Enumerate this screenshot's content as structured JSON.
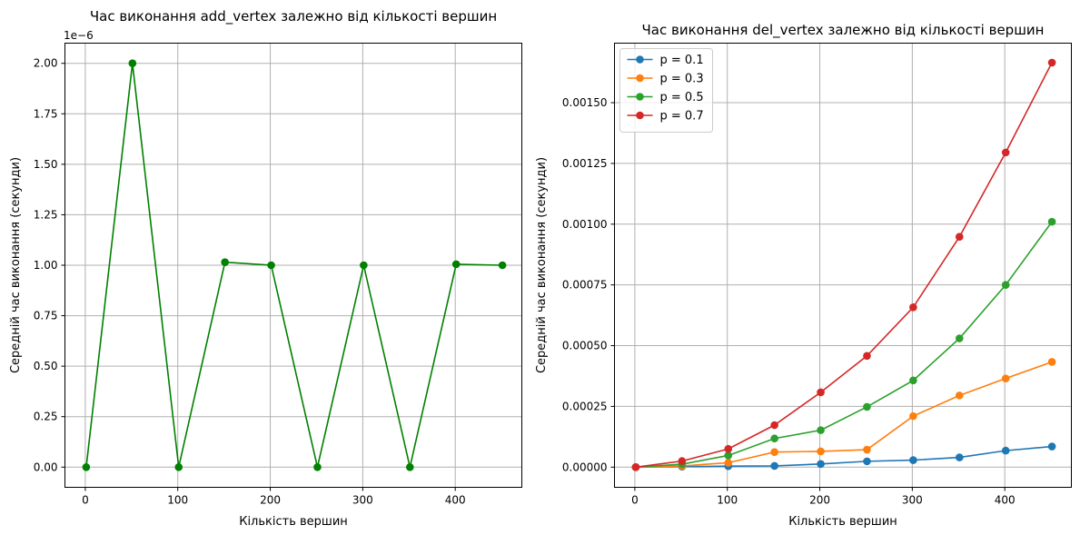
{
  "chart_data": [
    {
      "type": "line",
      "title": "Час виконання add_vertex залежно від кількості вершин",
      "xlabel": "Кількість вершин",
      "ylabel": "Середній час виконання (секунди)",
      "offset_label": "1e−6",
      "xlim": [
        -22,
        472
      ],
      "ylim": [
        -1e-07,
        2.1e-06
      ],
      "xticks": [
        0,
        100,
        200,
        300,
        400
      ],
      "yticks": [
        0,
        2.5e-07,
        5e-07,
        7.5e-07,
        1e-06,
        1.25e-06,
        1.5e-06,
        1.75e-06,
        2e-06
      ],
      "ytick_labels": [
        "0.00",
        "0.25",
        "0.50",
        "0.75",
        "1.00",
        "1.25",
        "1.50",
        "1.75",
        "2.00"
      ],
      "grid": true,
      "series": [
        {
          "color": "#008000",
          "x": [
            1,
            51,
            101,
            151,
            201,
            251,
            301,
            351,
            401,
            451
          ],
          "y": [
            0,
            2e-06,
            0,
            1.015e-06,
            1e-06,
            0,
            1e-06,
            0,
            1.005e-06,
            1e-06
          ]
        }
      ]
    },
    {
      "type": "line",
      "title": "Час виконання del_vertex залежно від кількості вершин",
      "xlabel": "Кількість вершин",
      "ylabel": "Середній час виконання (секунди)",
      "xlim": [
        -22,
        472
      ],
      "ylim": [
        -8.3e-05,
        0.001745
      ],
      "xticks": [
        0,
        100,
        200,
        300,
        400
      ],
      "yticks": [
        0,
        0.00025,
        0.0005,
        0.00075,
        0.001,
        0.00125,
        0.0015
      ],
      "ytick_labels": [
        "0.00000",
        "0.00025",
        "0.00050",
        "0.00075",
        "0.00100",
        "0.00125",
        "0.00150"
      ],
      "grid": true,
      "legend_position": "upper-left",
      "series": [
        {
          "name": "p = 0.1",
          "color": "#1f77b4",
          "x": [
            1,
            51,
            101,
            151,
            201,
            251,
            301,
            351,
            401,
            451
          ],
          "y": [
            0.0,
            2e-06,
            4e-06,
            5e-06,
            1.3e-05,
            2.4e-05,
            2.9e-05,
            4e-05,
            6.8e-05,
            8.5e-05
          ]
        },
        {
          "name": "p = 0.3",
          "color": "#ff7f0e",
          "x": [
            1,
            51,
            101,
            151,
            201,
            251,
            301,
            351,
            401,
            451
          ],
          "y": [
            0.0,
            5e-06,
            1.8e-05,
            6.2e-05,
            6.5e-05,
            7.2e-05,
            0.00021,
            0.000295,
            0.000365,
            0.000433
          ]
        },
        {
          "name": "p = 0.5",
          "color": "#2ca02c",
          "x": [
            1,
            51,
            101,
            151,
            201,
            251,
            301,
            351,
            401,
            451
          ],
          "y": [
            0.0,
            1.2e-05,
            4.8e-05,
            0.000118,
            0.000152,
            0.000248,
            0.000357,
            0.00053,
            0.00075,
            0.00101
          ]
        },
        {
          "name": "p = 0.7",
          "color": "#d62728",
          "x": [
            1,
            51,
            101,
            151,
            201,
            251,
            301,
            351,
            401,
            451
          ],
          "y": [
            0.0,
            2.5e-05,
            7.5e-05,
            0.000173,
            0.000308,
            0.000458,
            0.000658,
            0.000948,
            0.001295,
            0.001665
          ]
        }
      ]
    }
  ]
}
